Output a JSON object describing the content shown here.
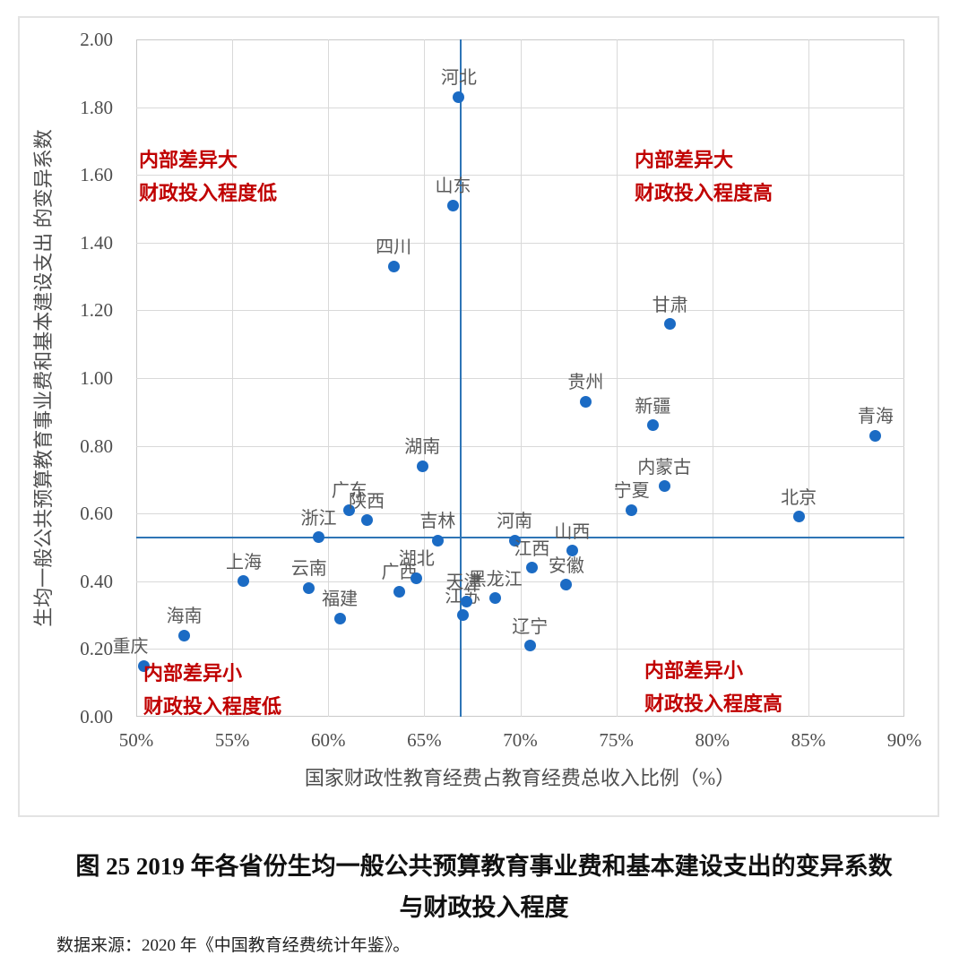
{
  "figure": {
    "caption_line1": "图 25  2019 年各省份生均一般公共预算教育事业费和基本建设支出的变异系数",
    "caption_line2": "与财政投入程度",
    "source": "数据来源：2020 年《中国教育经费统计年鉴》。"
  },
  "colors": {
    "marker_blue": "#1b6bc4",
    "reference_line_blue": "#2e75b6",
    "quadrant_red": "#c00000",
    "gridline_gray": "#d9d9d9",
    "label_gray": "#595959"
  },
  "chart_data": {
    "type": "scatter",
    "title": "",
    "xlabel": "国家财政性教育经费占教育经费总收入比例（%）",
    "ylabel": "生均一般公共预算教育事业费和基本建设支出 的变异系数",
    "xlim": [
      50,
      90
    ],
    "ylim": [
      0,
      2
    ],
    "grid": true,
    "legend": "none",
    "x_ticks": [
      "50%",
      "55%",
      "60%",
      "65%",
      "70%",
      "75%",
      "80%",
      "85%",
      "90%"
    ],
    "x_tick_values": [
      50,
      55,
      60,
      65,
      70,
      75,
      80,
      85,
      90
    ],
    "y_ticks": [
      "2.00",
      "1.80",
      "1.60",
      "1.40",
      "1.20",
      "1.00",
      "0.80",
      "0.60",
      "0.40",
      "0.20",
      "0.00"
    ],
    "y_tick_values": [
      2.0,
      1.8,
      1.6,
      1.4,
      1.2,
      1.0,
      0.8,
      0.6,
      0.4,
      0.2,
      0.0
    ],
    "reference_lines": {
      "vertical_x": 66.9,
      "horizontal_y": 0.53
    },
    "quadrant_labels": [
      {
        "position": "top-left",
        "lines": [
          "内部差异大",
          "财政投入程度低"
        ]
      },
      {
        "position": "top-right",
        "lines": [
          "内部差异大",
          "财政投入程度高"
        ]
      },
      {
        "position": "bottom-left",
        "lines": [
          "内部差异小",
          "财政投入程度低"
        ]
      },
      {
        "position": "bottom-right",
        "lines": [
          "内部差异小",
          "财政投入程度高"
        ]
      }
    ],
    "points": [
      {
        "name": "重庆",
        "x": 50.4,
        "y": 0.15,
        "label_dx": -15
      },
      {
        "name": "海南",
        "x": 52.5,
        "y": 0.24
      },
      {
        "name": "上海",
        "x": 55.6,
        "y": 0.4
      },
      {
        "name": "云南",
        "x": 59.0,
        "y": 0.38
      },
      {
        "name": "浙江",
        "x": 59.5,
        "y": 0.53
      },
      {
        "name": "福建",
        "x": 60.6,
        "y": 0.29
      },
      {
        "name": "广东",
        "x": 61.1,
        "y": 0.61
      },
      {
        "name": "陕西",
        "x": 62.0,
        "y": 0.58
      },
      {
        "name": "四川",
        "x": 63.4,
        "y": 1.33
      },
      {
        "name": "广西",
        "x": 63.7,
        "y": 0.37
      },
      {
        "name": "湖北",
        "x": 64.6,
        "y": 0.41
      },
      {
        "name": "湖南",
        "x": 64.9,
        "y": 0.74
      },
      {
        "name": "吉林",
        "x": 65.7,
        "y": 0.52
      },
      {
        "name": "山东",
        "x": 66.5,
        "y": 1.51
      },
      {
        "name": "河北",
        "x": 66.8,
        "y": 1.83
      },
      {
        "name": "江苏",
        "x": 67.0,
        "y": 0.3
      },
      {
        "name": "天津",
        "x": 67.2,
        "y": 0.34,
        "label_dx": -3
      },
      {
        "name": "黑龙江",
        "x": 68.7,
        "y": 0.35
      },
      {
        "name": "河南",
        "x": 69.7,
        "y": 0.52
      },
      {
        "name": "辽宁",
        "x": 70.5,
        "y": 0.21
      },
      {
        "name": "江西",
        "x": 70.6,
        "y": 0.44
      },
      {
        "name": "安徽",
        "x": 72.4,
        "y": 0.39
      },
      {
        "name": "山西",
        "x": 72.7,
        "y": 0.49
      },
      {
        "name": "贵州",
        "x": 73.4,
        "y": 0.93
      },
      {
        "name": "宁夏",
        "x": 75.8,
        "y": 0.61
      },
      {
        "name": "新疆",
        "x": 76.9,
        "y": 0.86
      },
      {
        "name": "内蒙古",
        "x": 77.5,
        "y": 0.68
      },
      {
        "name": "甘肃",
        "x": 77.8,
        "y": 1.16
      },
      {
        "name": "北京",
        "x": 84.5,
        "y": 0.59
      },
      {
        "name": "青海",
        "x": 88.5,
        "y": 0.83
      }
    ]
  }
}
